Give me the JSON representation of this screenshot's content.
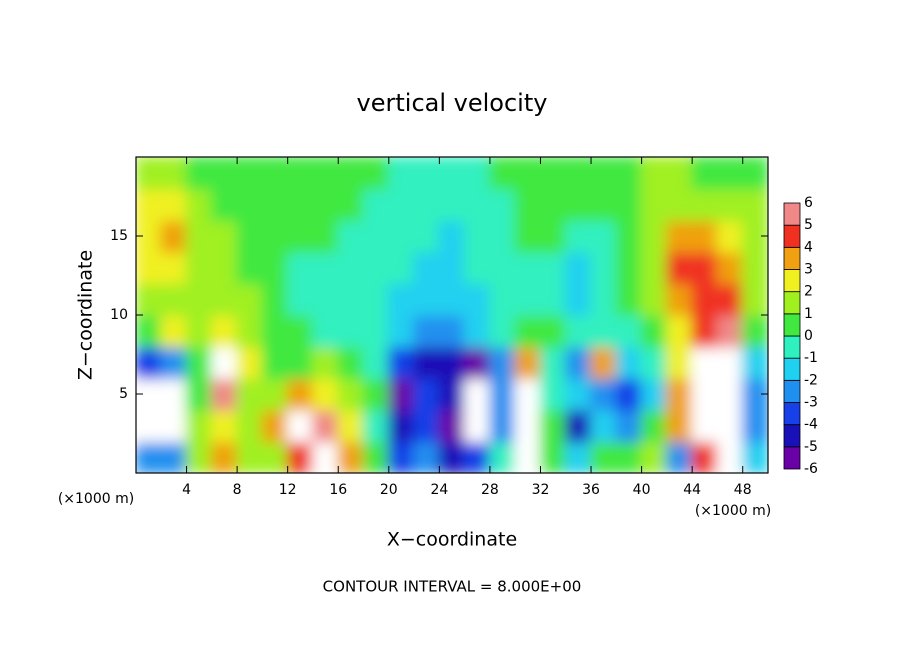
{
  "chart_data": {
    "type": "heatmap",
    "title": "vertical velocity",
    "x_label": "X−coordinate",
    "y_label": "Z−coordinate",
    "x_unit": "(×1000 m)",
    "y_unit": "(×1000 m)",
    "footer": "CONTOUR INTERVAL = 8.000E+00",
    "xlim": [
      0,
      50
    ],
    "ylim": [
      0,
      20
    ],
    "xticks": [
      4,
      8,
      12,
      16,
      20,
      24,
      28,
      32,
      36,
      40,
      44,
      48
    ],
    "yticks": [
      5,
      10,
      15
    ],
    "x": [
      1,
      3,
      5,
      7,
      9,
      11,
      13,
      15,
      17,
      19,
      21,
      23,
      25,
      27,
      29,
      31,
      33,
      35,
      37,
      39,
      41,
      43,
      45,
      47,
      49
    ],
    "y": [
      1,
      3,
      5,
      7,
      9,
      11,
      13,
      15,
      17,
      19
    ],
    "values": [
      [
        -3,
        -3,
        1,
        3,
        1,
        1,
        4,
        6,
        3,
        0,
        -4,
        -3,
        -5,
        -4,
        -1,
        6,
        0,
        -2,
        0,
        0,
        1,
        -3,
        4,
        6,
        -2
      ],
      [
        8,
        8,
        1,
        2,
        1,
        3,
        8,
        5,
        2,
        -1,
        -5,
        -4,
        -6,
        7,
        -3,
        8,
        0,
        -5,
        -2,
        -3,
        0,
        3,
        7,
        8,
        -3
      ],
      [
        8,
        8,
        0,
        5,
        1,
        1,
        3,
        2,
        1,
        0,
        -6,
        -4,
        -5,
        7,
        -3,
        7,
        -1,
        -2,
        -3,
        -4,
        -2,
        3,
        8,
        8,
        -3
      ],
      [
        -4,
        -3,
        0,
        8,
        2,
        0,
        0,
        1,
        0,
        -1,
        -4,
        -5,
        -5,
        -6,
        -3,
        3,
        -1,
        -3,
        3,
        -2,
        -1,
        2,
        7,
        8,
        -2
      ],
      [
        0,
        2,
        1,
        2,
        1,
        0,
        0,
        -1,
        -1,
        -1,
        -2,
        -3,
        -3,
        -2,
        -1,
        0,
        0,
        -1,
        -1,
        -1,
        0,
        2,
        4,
        5,
        0
      ],
      [
        1,
        1,
        1,
        1,
        1,
        0,
        -1,
        -1,
        -1,
        -1,
        -2,
        -2,
        -2,
        -2,
        -1,
        -1,
        -1,
        -2,
        -1,
        0,
        1,
        3,
        4,
        4,
        1
      ],
      [
        2,
        2,
        1,
        1,
        0,
        0,
        -1,
        -1,
        -1,
        -1,
        -1,
        -2,
        -2,
        -1,
        -1,
        -1,
        -1,
        -2,
        -1,
        0,
        1,
        4,
        4,
        3,
        1
      ],
      [
        2,
        3,
        1,
        1,
        0,
        0,
        0,
        0,
        -1,
        -1,
        -1,
        -1,
        -2,
        -1,
        -1,
        0,
        0,
        -1,
        -1,
        0,
        1,
        3,
        3,
        2,
        1
      ],
      [
        2,
        2,
        1,
        0,
        0,
        0,
        0,
        0,
        0,
        -1,
        -1,
        -1,
        -1,
        -1,
        -1,
        0,
        0,
        0,
        0,
        0,
        1,
        1,
        1,
        1,
        1
      ],
      [
        1,
        1,
        0,
        0,
        0,
        0,
        0,
        0,
        0,
        0,
        -1,
        -1,
        -1,
        -1,
        0,
        0,
        0,
        0,
        0,
        0,
        1,
        1,
        0,
        0,
        0
      ]
    ],
    "colorbar": {
      "levels": [
        -6,
        -5,
        -4,
        -3,
        -2,
        -1,
        0,
        1,
        2,
        3,
        4,
        5,
        6
      ],
      "colors": [
        "#6a00a8",
        "#1a10b8",
        "#1840e8",
        "#2090f0",
        "#20d0f0",
        "#30f0c0",
        "#40e840",
        "#a0f020",
        "#f0f020",
        "#f0a010",
        "#f03020",
        "#f08888"
      ],
      "over_color": "#ffffff"
    }
  }
}
